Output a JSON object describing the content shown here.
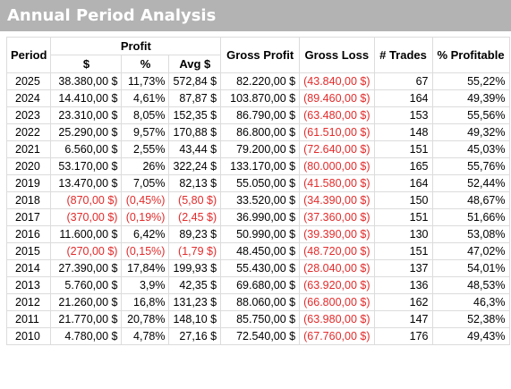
{
  "title": "Annual Period Analysis",
  "headers": {
    "period": "Period",
    "profit": "Profit",
    "profit_usd": "$",
    "profit_pct": "%",
    "avg": "Avg $",
    "gross_profit": "Gross Profit",
    "gross_loss": "Gross Loss",
    "trades": "# Trades",
    "pct_profitable": "% Profitable"
  },
  "colors": {
    "negative": "#e32b2b",
    "title_bar": "#b3b3b3",
    "grid": "#dcdcdc"
  },
  "rows": [
    {
      "period": "2025",
      "profit_usd": "38.380,00 $",
      "profit_pct": "11,73%",
      "avg": "572,84 $",
      "gross_profit": "82.220,00 $",
      "gross_loss": "(43.840,00 $)",
      "trades": "67",
      "pct_profitable": "55,22%",
      "negative": false
    },
    {
      "period": "2024",
      "profit_usd": "14.410,00 $",
      "profit_pct": "4,61%",
      "avg": "87,87 $",
      "gross_profit": "103.870,00 $",
      "gross_loss": "(89.460,00 $)",
      "trades": "164",
      "pct_profitable": "49,39%",
      "negative": false
    },
    {
      "period": "2023",
      "profit_usd": "23.310,00 $",
      "profit_pct": "8,05%",
      "avg": "152,35 $",
      "gross_profit": "86.790,00 $",
      "gross_loss": "(63.480,00 $)",
      "trades": "153",
      "pct_profitable": "55,56%",
      "negative": false
    },
    {
      "period": "2022",
      "profit_usd": "25.290,00 $",
      "profit_pct": "9,57%",
      "avg": "170,88 $",
      "gross_profit": "86.800,00 $",
      "gross_loss": "(61.510,00 $)",
      "trades": "148",
      "pct_profitable": "49,32%",
      "negative": false
    },
    {
      "period": "2021",
      "profit_usd": "6.560,00 $",
      "profit_pct": "2,55%",
      "avg": "43,44 $",
      "gross_profit": "79.200,00 $",
      "gross_loss": "(72.640,00 $)",
      "trades": "151",
      "pct_profitable": "45,03%",
      "negative": false
    },
    {
      "period": "2020",
      "profit_usd": "53.170,00 $",
      "profit_pct": "26%",
      "avg": "322,24 $",
      "gross_profit": "133.170,00 $",
      "gross_loss": "(80.000,00 $)",
      "trades": "165",
      "pct_profitable": "55,76%",
      "negative": false
    },
    {
      "period": "2019",
      "profit_usd": "13.470,00 $",
      "profit_pct": "7,05%",
      "avg": "82,13 $",
      "gross_profit": "55.050,00 $",
      "gross_loss": "(41.580,00 $)",
      "trades": "164",
      "pct_profitable": "52,44%",
      "negative": false
    },
    {
      "period": "2018",
      "profit_usd": "(870,00 $)",
      "profit_pct": "(0,45%)",
      "avg": "(5,80 $)",
      "gross_profit": "33.520,00 $",
      "gross_loss": "(34.390,00 $)",
      "trades": "150",
      "pct_profitable": "48,67%",
      "negative": true
    },
    {
      "period": "2017",
      "profit_usd": "(370,00 $)",
      "profit_pct": "(0,19%)",
      "avg": "(2,45 $)",
      "gross_profit": "36.990,00 $",
      "gross_loss": "(37.360,00 $)",
      "trades": "151",
      "pct_profitable": "51,66%",
      "negative": true
    },
    {
      "period": "2016",
      "profit_usd": "11.600,00 $",
      "profit_pct": "6,42%",
      "avg": "89,23 $",
      "gross_profit": "50.990,00 $",
      "gross_loss": "(39.390,00 $)",
      "trades": "130",
      "pct_profitable": "53,08%",
      "negative": false
    },
    {
      "period": "2015",
      "profit_usd": "(270,00 $)",
      "profit_pct": "(0,15%)",
      "avg": "(1,79 $)",
      "gross_profit": "48.450,00 $",
      "gross_loss": "(48.720,00 $)",
      "trades": "151",
      "pct_profitable": "47,02%",
      "negative": true
    },
    {
      "period": "2014",
      "profit_usd": "27.390,00 $",
      "profit_pct": "17,84%",
      "avg": "199,93 $",
      "gross_profit": "55.430,00 $",
      "gross_loss": "(28.040,00 $)",
      "trades": "137",
      "pct_profitable": "54,01%",
      "negative": false
    },
    {
      "period": "2013",
      "profit_usd": "5.760,00 $",
      "profit_pct": "3,9%",
      "avg": "42,35 $",
      "gross_profit": "69.680,00 $",
      "gross_loss": "(63.920,00 $)",
      "trades": "136",
      "pct_profitable": "48,53%",
      "negative": false
    },
    {
      "period": "2012",
      "profit_usd": "21.260,00 $",
      "profit_pct": "16,8%",
      "avg": "131,23 $",
      "gross_profit": "88.060,00 $",
      "gross_loss": "(66.800,00 $)",
      "trades": "162",
      "pct_profitable": "46,3%",
      "negative": false
    },
    {
      "period": "2011",
      "profit_usd": "21.770,00 $",
      "profit_pct": "20,78%",
      "avg": "148,10 $",
      "gross_profit": "85.750,00 $",
      "gross_loss": "(63.980,00 $)",
      "trades": "147",
      "pct_profitable": "52,38%",
      "negative": false
    },
    {
      "period": "2010",
      "profit_usd": "4.780,00 $",
      "profit_pct": "4,78%",
      "avg": "27,16 $",
      "gross_profit": "72.540,00 $",
      "gross_loss": "(67.760,00 $)",
      "trades": "176",
      "pct_profitable": "49,43%",
      "negative": false
    }
  ]
}
